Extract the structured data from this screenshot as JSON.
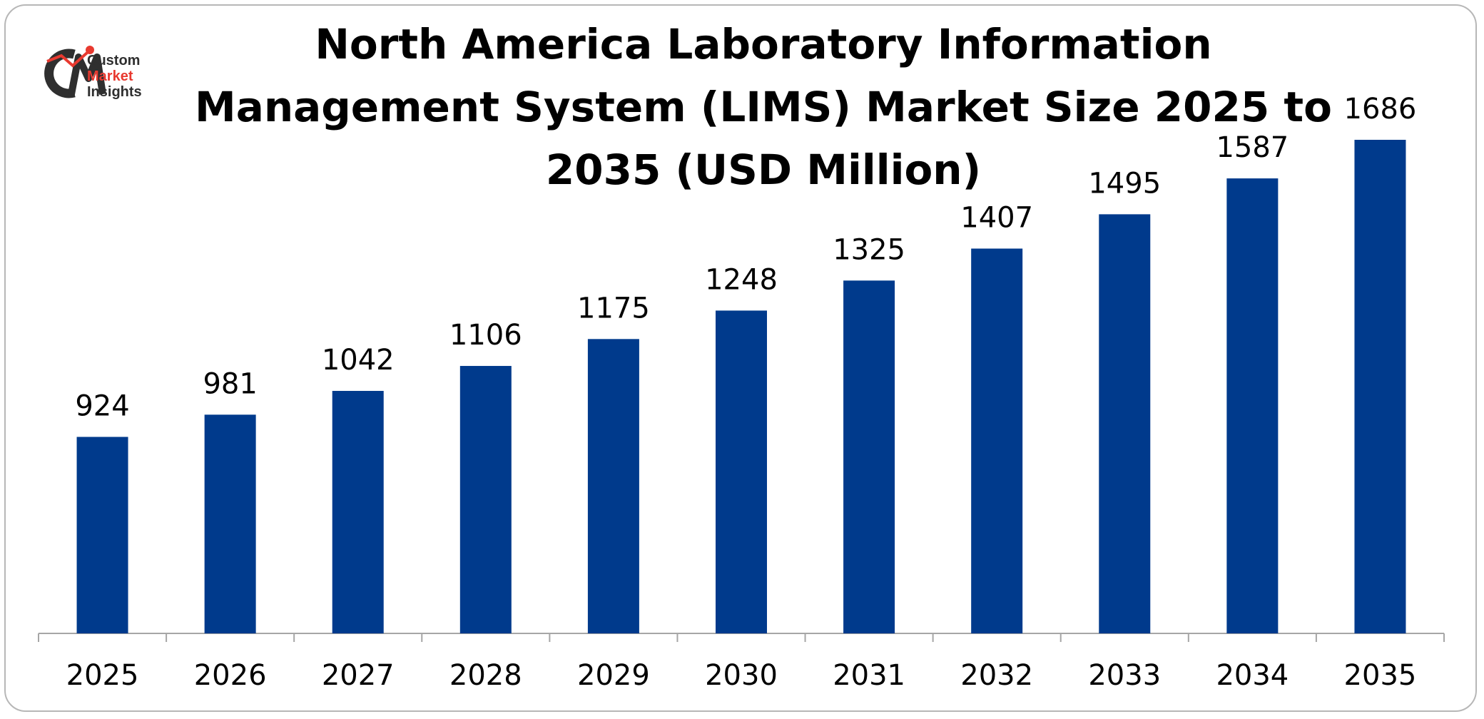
{
  "logo": {
    "line1": "Custom",
    "line2": "Market",
    "line3": "Insights"
  },
  "chart_data": {
    "type": "bar",
    "title": "North America Laboratory Information Management System (LIMS) Market Size 2025 to 2035 (USD Million)",
    "categories": [
      "2025",
      "2026",
      "2027",
      "2028",
      "2029",
      "2030",
      "2031",
      "2032",
      "2033",
      "2034",
      "2035"
    ],
    "values": [
      924,
      981,
      1042,
      1106,
      1175,
      1248,
      1325,
      1407,
      1495,
      1587,
      1686
    ],
    "data_labels": true,
    "xlabel": "",
    "ylabel": "",
    "ylim": [
      420,
      1686
    ],
    "grid": false,
    "legend": "none",
    "bar_color": "#003a8c",
    "axis_color": "#a6a6a6"
  }
}
